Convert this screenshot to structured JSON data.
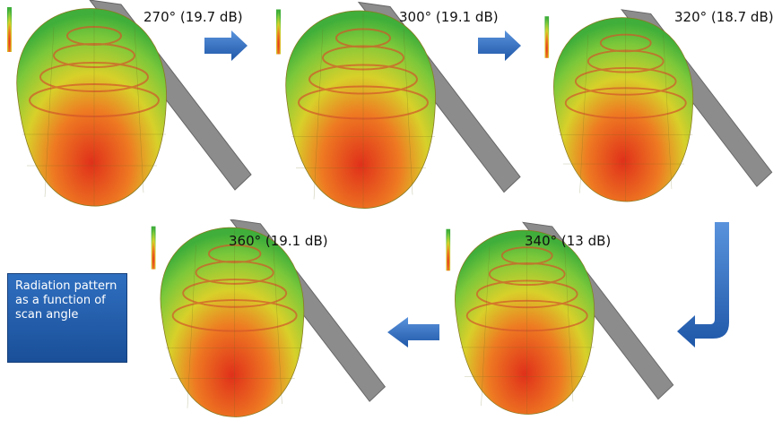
{
  "panels": [
    {
      "label": "270° (19.7 dB)"
    },
    {
      "label": "300° (19.1 dB)"
    },
    {
      "label": "320° (18.7 dB)"
    },
    {
      "label": "360° (19.1 dB)"
    },
    {
      "label": "340° (13 dB)"
    }
  ],
  "caption": {
    "text": "Radiation pattern as a function of scan angle"
  }
}
